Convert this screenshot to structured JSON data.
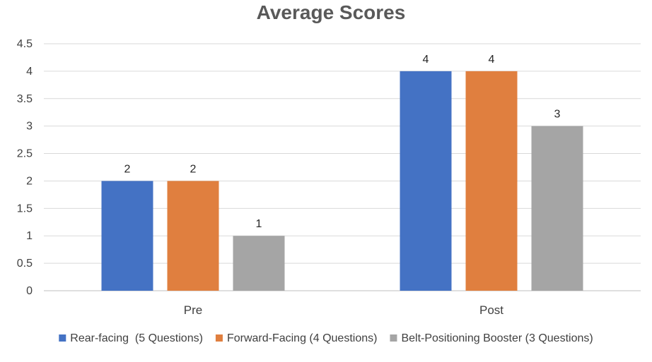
{
  "chart_data": {
    "type": "bar",
    "title": "Average Scores",
    "xlabel": "",
    "ylabel": "",
    "categories": [
      "Pre",
      "Post"
    ],
    "ylim": [
      0,
      4.5
    ],
    "yticks": [
      "0",
      "0.5",
      "1",
      "1.5",
      "2",
      "2.5",
      "3",
      "3.5",
      "4",
      "4.5"
    ],
    "grid": true,
    "legend_position": "bottom",
    "series": [
      {
        "name": "Rear-facing  (5 Questions)",
        "color": "#4472c4",
        "values": [
          2,
          4
        ]
      },
      {
        "name": "Forward-Facing (4 Questions)",
        "color": "#e07f3f",
        "values": [
          2,
          4
        ]
      },
      {
        "name": "Belt-Positioning Booster (3 Questions)",
        "color": "#a5a5a5",
        "values": [
          1,
          3
        ]
      }
    ]
  }
}
